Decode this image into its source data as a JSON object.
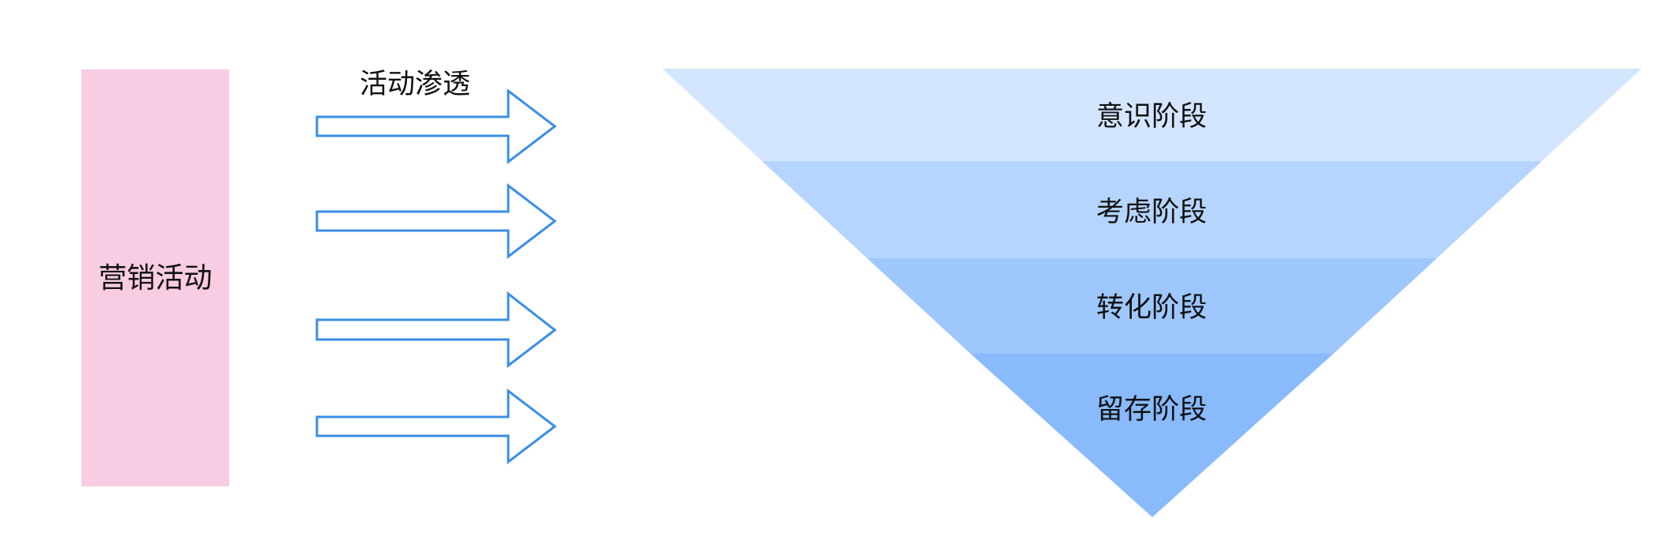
{
  "diagram": {
    "left_box": {
      "label": "营销活动",
      "fill": "#f8cce2"
    },
    "arrows": {
      "label": "活动渗透",
      "stroke": "#3a8ee6",
      "fill": "#ffffff",
      "count": 4
    },
    "funnel": {
      "stages": [
        {
          "label": "意识阶段",
          "fill": "#d4e6ff"
        },
        {
          "label": "考虑阶段",
          "fill": "#b6d5fe"
        },
        {
          "label": "转化阶段",
          "fill": "#9dc7fd"
        },
        {
          "label": "留存阶段",
          "fill": "#88bafc"
        }
      ]
    }
  }
}
